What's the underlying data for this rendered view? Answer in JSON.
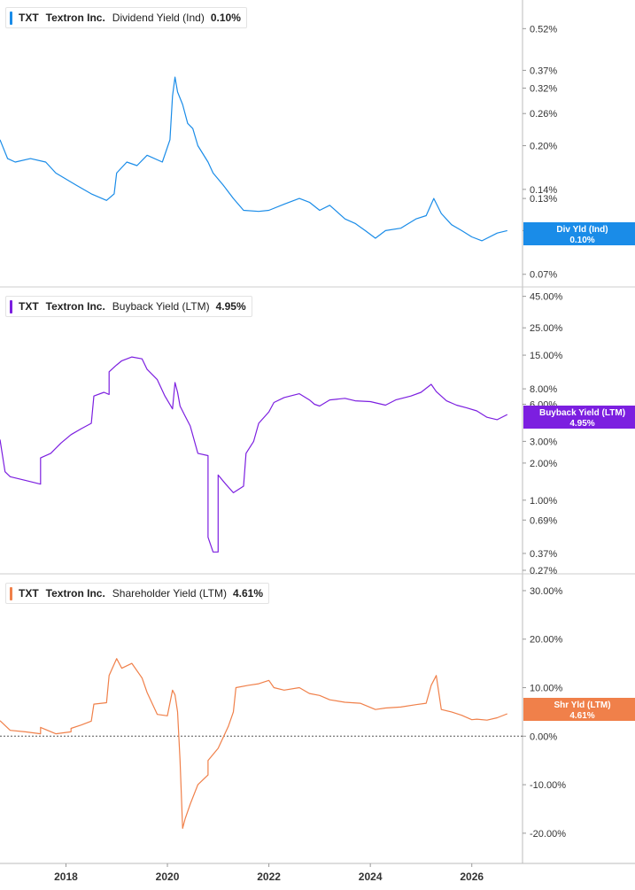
{
  "chart_data": [
    {
      "type": "line",
      "scale": "log",
      "legend": {
        "ticker": "TXT",
        "company": "Textron Inc.",
        "metric": "Dividend Yield (Ind)",
        "value": "0.10%"
      },
      "tag": {
        "label": "Div Yld (Ind)",
        "value": "0.10%"
      },
      "color": "#1a8ce8",
      "ylim": [
        0.065,
        0.62
      ],
      "y_ticks": [
        "0.52%",
        "0.37%",
        "0.32%",
        "0.26%",
        "0.20%",
        "0.14%",
        "0.13%",
        "0.10%",
        "0.07%"
      ],
      "y_tick_values": [
        0.52,
        0.37,
        0.32,
        0.26,
        0.2,
        0.14,
        0.13,
        0.1,
        0.07
      ],
      "x": [
        2016.7,
        2016.85,
        2017.0,
        2017.3,
        2017.6,
        2017.8,
        2018.2,
        2018.5,
        2018.8,
        2018.95,
        2019.0,
        2019.2,
        2019.4,
        2019.6,
        2019.9,
        2020.05,
        2020.1,
        2020.15,
        2020.2,
        2020.3,
        2020.4,
        2020.5,
        2020.6,
        2020.8,
        2020.9,
        2021.1,
        2021.3,
        2021.5,
        2021.8,
        2022.0,
        2022.3,
        2022.6,
        2022.8,
        2023.0,
        2023.2,
        2023.5,
        2023.7,
        2023.9,
        2024.1,
        2024.3,
        2024.6,
        2024.9,
        2025.1,
        2025.25,
        2025.4,
        2025.6,
        2025.8,
        2026.0,
        2026.2,
        2026.5,
        2026.7
      ],
      "y": [
        0.21,
        0.18,
        0.175,
        0.18,
        0.175,
        0.16,
        0.145,
        0.135,
        0.128,
        0.135,
        0.16,
        0.175,
        0.17,
        0.185,
        0.175,
        0.21,
        0.3,
        0.35,
        0.31,
        0.28,
        0.24,
        0.23,
        0.2,
        0.175,
        0.16,
        0.145,
        0.13,
        0.118,
        0.117,
        0.118,
        0.124,
        0.13,
        0.126,
        0.118,
        0.123,
        0.11,
        0.106,
        0.1,
        0.094,
        0.1,
        0.102,
        0.11,
        0.113,
        0.13,
        0.115,
        0.105,
        0.1,
        0.095,
        0.092,
        0.098,
        0.1
      ]
    },
    {
      "type": "line",
      "scale": "log",
      "legend": {
        "ticker": "TXT",
        "company": "Textron Inc.",
        "metric": "Buyback Yield (LTM)",
        "value": "4.95%"
      },
      "tag": {
        "label": "Buyback Yield (LTM)",
        "value": "4.95%"
      },
      "color": "#7c1fe0",
      "ylim": [
        0.27,
        47
      ],
      "y_ticks": [
        "45.00%",
        "25.00%",
        "15.00%",
        "8.00%",
        "6.00%",
        "3.00%",
        "2.00%",
        "1.00%",
        "0.69%",
        "0.37%",
        "0.27%"
      ],
      "y_tick_values": [
        45,
        25,
        15,
        8,
        6,
        3,
        2,
        1,
        0.69,
        0.37,
        0.27
      ],
      "x": [
        2016.7,
        2016.8,
        2016.9,
        2017.2,
        2017.5,
        2017.5,
        2017.7,
        2017.9,
        2018.1,
        2018.3,
        2018.5,
        2018.55,
        2018.75,
        2018.85,
        2018.85,
        2019.0,
        2019.1,
        2019.3,
        2019.5,
        2019.6,
        2019.8,
        2019.95,
        2020.1,
        2020.15,
        2020.2,
        2020.25,
        2020.35,
        2020.45,
        2020.6,
        2020.8,
        2020.8,
        2020.9,
        2021.0,
        2021.0,
        2021.15,
        2021.3,
        2021.5,
        2021.55,
        2021.7,
        2021.8,
        2022.0,
        2022.1,
        2022.3,
        2022.6,
        2022.8,
        2022.9,
        2023.0,
        2023.2,
        2023.5,
        2023.7,
        2024.0,
        2024.3,
        2024.5,
        2024.8,
        2025.0,
        2025.2,
        2025.3,
        2025.5,
        2025.7,
        2025.9,
        2026.1,
        2026.3,
        2026.5,
        2026.7
      ],
      "y": [
        3.1,
        1.7,
        1.55,
        1.45,
        1.35,
        2.2,
        2.4,
        2.9,
        3.4,
        3.8,
        4.2,
        7.0,
        7.5,
        7.2,
        11.0,
        12.5,
        13.5,
        14.5,
        14.0,
        11.5,
        9.5,
        7.0,
        5.5,
        9.0,
        7.5,
        5.8,
        4.8,
        4.0,
        2.4,
        2.3,
        0.5,
        0.38,
        0.38,
        1.6,
        1.35,
        1.15,
        1.3,
        2.4,
        3.0,
        4.2,
        5.2,
        6.2,
        6.8,
        7.3,
        6.5,
        6.0,
        5.8,
        6.5,
        6.7,
        6.4,
        6.3,
        5.9,
        6.5,
        7.0,
        7.5,
        8.7,
        7.6,
        6.4,
        5.9,
        5.6,
        5.3,
        4.7,
        4.5,
        4.95
      ]
    },
    {
      "type": "line",
      "scale": "linear",
      "legend": {
        "ticker": "TXT",
        "company": "Textron Inc.",
        "metric": "Shareholder Yield (LTM)",
        "value": "4.61%"
      },
      "tag": {
        "label": "Shr Yld (LTM)",
        "value": "4.61%"
      },
      "color": "#f0804a",
      "ylim": [
        -25.5,
        32
      ],
      "y_ticks": [
        "30.00%",
        "20.00%",
        "10.00%",
        "0.00%",
        "-10.00%",
        "-20.00%"
      ],
      "y_tick_values": [
        30,
        20,
        10,
        0,
        -10,
        -20
      ],
      "zero_line": true,
      "x": [
        2016.7,
        2016.9,
        2017.2,
        2017.5,
        2017.5,
        2017.8,
        2018.1,
        2018.1,
        2018.3,
        2018.5,
        2018.55,
        2018.8,
        2018.85,
        2019.0,
        2019.1,
        2019.3,
        2019.5,
        2019.6,
        2019.8,
        2020.0,
        2020.1,
        2020.15,
        2020.2,
        2020.25,
        2020.3,
        2020.35,
        2020.45,
        2020.6,
        2020.8,
        2020.8,
        2021.0,
        2021.2,
        2021.3,
        2021.35,
        2021.6,
        2021.8,
        2022.0,
        2022.1,
        2022.3,
        2022.6,
        2022.8,
        2023.0,
        2023.2,
        2023.5,
        2023.8,
        2024.1,
        2024.3,
        2024.6,
        2024.9,
        2025.1,
        2025.2,
        2025.3,
        2025.4,
        2025.6,
        2025.8,
        2026.0,
        2026.1,
        2026.3,
        2026.5,
        2026.7
      ],
      "y": [
        3.2,
        1.2,
        0.9,
        0.5,
        1.8,
        0.5,
        0.9,
        1.6,
        2.3,
        3.1,
        6.6,
        6.9,
        12.5,
        16.0,
        14.0,
        15.0,
        12.0,
        9.0,
        4.5,
        4.2,
        9.5,
        8.5,
        5.0,
        -5.0,
        -19.0,
        -17.0,
        -14.0,
        -10.0,
        -8.0,
        -5.0,
        -2.5,
        2.0,
        5.0,
        10.0,
        10.5,
        10.8,
        11.5,
        10.0,
        9.5,
        10.0,
        8.8,
        8.4,
        7.5,
        7.0,
        6.8,
        5.5,
        5.8,
        6.0,
        6.5,
        6.8,
        10.5,
        12.5,
        5.5,
        5.0,
        4.3,
        3.4,
        3.5,
        3.3,
        3.8,
        4.61
      ]
    }
  ],
  "x_axis": {
    "ticks": [
      "2018",
      "2020",
      "2022",
      "2024",
      "2026"
    ],
    "tick_values": [
      2018,
      2020,
      2022,
      2024,
      2026
    ],
    "xlim": [
      2016.7,
      2027.0
    ]
  }
}
